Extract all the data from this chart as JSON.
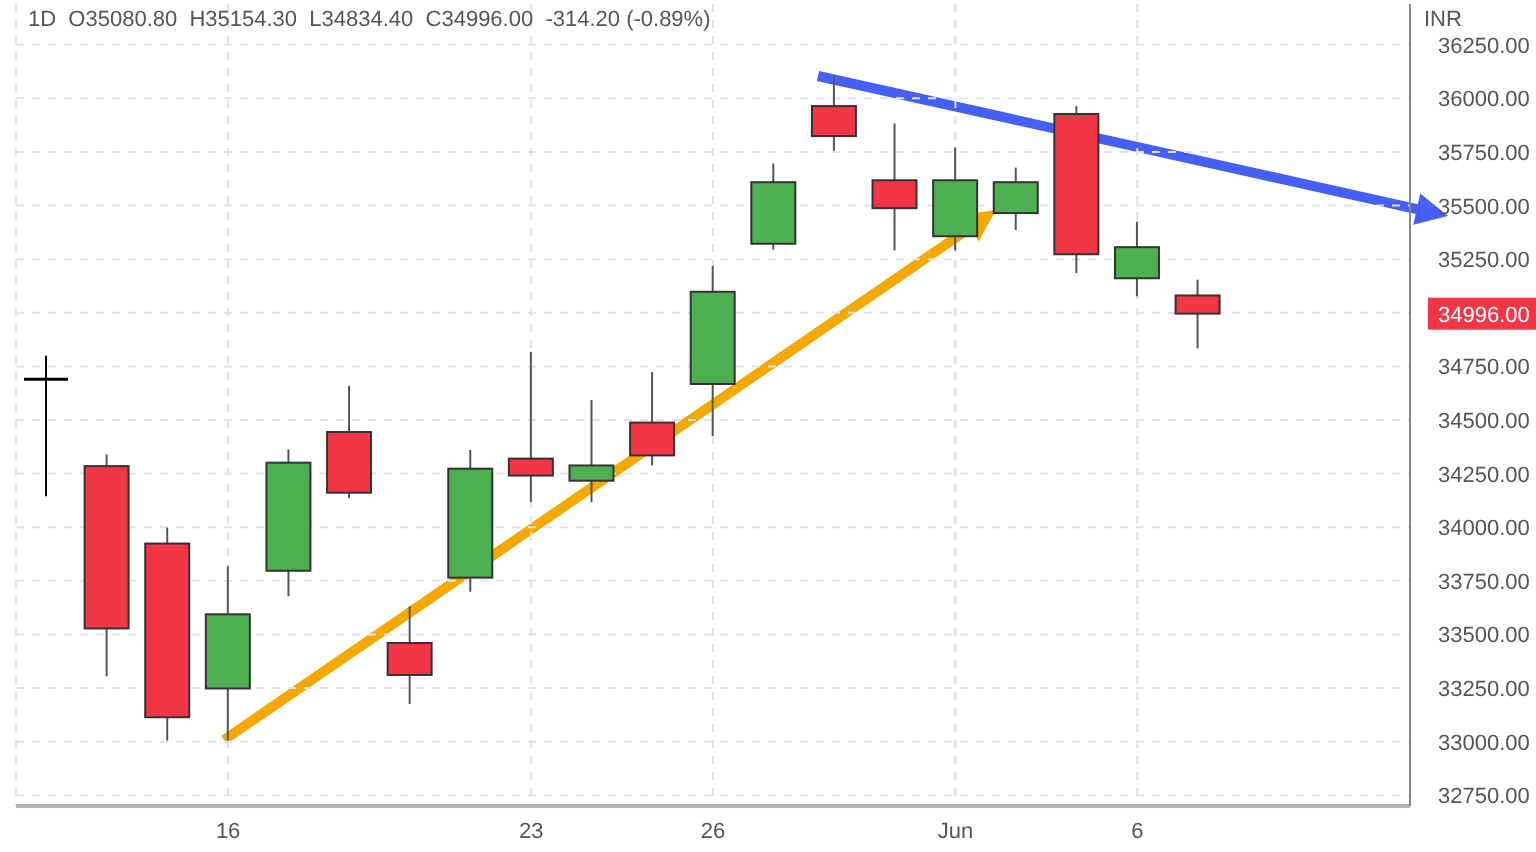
{
  "chart_data": {
    "type": "candlestick",
    "title": "1D  O35080.80  H35154.30  L34834.40  C34996.00  -314.20 (-0.89%)",
    "ylabel": "INR",
    "categories": [
      null,
      null,
      null,
      "16",
      null,
      null,
      null,
      null,
      "23",
      null,
      null,
      "26",
      null,
      null,
      null,
      "Jun",
      null,
      null,
      "6",
      null,
      null,
      null,
      null
    ],
    "ohlc": [
      [
        34690,
        34800,
        34145,
        34690
      ],
      [
        34285,
        34340,
        33305,
        33528
      ],
      [
        33924,
        33998,
        33005,
        33114
      ],
      [
        33248,
        33818,
        33005,
        33594
      ],
      [
        33797,
        34363,
        33678,
        34301
      ],
      [
        34444,
        34659,
        34136,
        34161
      ],
      [
        33460,
        33631,
        33176,
        33311
      ],
      [
        33765,
        34360,
        33699,
        34273
      ],
      [
        34320,
        34818,
        34117,
        34241
      ],
      [
        34217,
        34593,
        34117,
        34288
      ],
      [
        34488,
        34724,
        34288,
        34335
      ],
      [
        34668,
        35219,
        34425,
        35098
      ],
      [
        35322,
        35696,
        35294,
        35609
      ],
      [
        35964,
        36104,
        35755,
        35824
      ],
      [
        35618,
        35883,
        35291,
        35488
      ],
      [
        35357,
        35771,
        35291,
        35618
      ],
      [
        35465,
        35677,
        35386,
        35609
      ],
      [
        35927,
        35964,
        35185,
        35273
      ],
      [
        35161,
        35425,
        35077,
        35306
      ],
      [
        35080.8,
        35154.3,
        34834.4,
        34996
      ],
      null,
      null,
      null
    ],
    "colors": [
      "#000000",
      "#f23645",
      "#f23645",
      "#4caf50",
      "#4caf50",
      "#f23645",
      "#f23645",
      "#4caf50",
      "#f23645",
      "#4caf50",
      "#f23645",
      "#4caf50",
      "#4caf50",
      "#f23645",
      "#f23645",
      "#4caf50",
      "#4caf50",
      "#f23645",
      "#4caf50",
      "#f23645",
      null,
      null,
      null
    ],
    "ylim": [
      32700,
      36440
    ],
    "yticks": [
      {
        "value": 32750,
        "label": "32750.00"
      },
      {
        "value": 33000,
        "label": "33000.00"
      },
      {
        "value": 33250,
        "label": "33250.00"
      },
      {
        "value": 33500,
        "label": "33500.00"
      },
      {
        "value": 33750,
        "label": "33750.00"
      },
      {
        "value": 34000,
        "label": "34000.00"
      },
      {
        "value": 34250,
        "label": "34250.00"
      },
      {
        "value": 34500,
        "label": "34500.00"
      },
      {
        "value": 34750,
        "label": "34750.00"
      },
      {
        "value": 34996,
        "label": "34996.00"
      },
      {
        "value": 35000,
        "label": null
      },
      {
        "value": 35250,
        "label": "35250.00"
      },
      {
        "value": 35500,
        "label": "35500.00"
      },
      {
        "value": 35750,
        "label": "35750.00"
      },
      {
        "value": 36000,
        "label": "36000.00"
      },
      {
        "value": 36250,
        "label": "36250.00"
      }
    ],
    "grid": true
  }
}
